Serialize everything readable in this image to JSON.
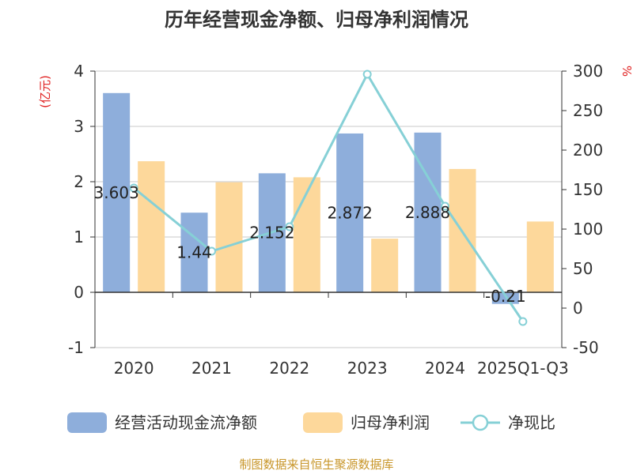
{
  "title": "历年经营现金净额、归母净利润情况",
  "source": "制图数据来自恒生聚源数据库",
  "chart_data": {
    "type": "bar",
    "categories": [
      "2020",
      "2021",
      "2022",
      "2023",
      "2024",
      "2025Q1-Q3"
    ],
    "y_left": {
      "unit": "(亿元)",
      "ticks": [
        4,
        3,
        2,
        1,
        0,
        -1
      ],
      "ylim": [
        -1,
        4
      ]
    },
    "y_right": {
      "unit": "%",
      "ticks": [
        300,
        250,
        200,
        150,
        100,
        50,
        0,
        -50
      ],
      "ylim": [
        -50,
        300
      ]
    },
    "series": [
      {
        "name": "经营活动现金流净额",
        "type": "bar",
        "axis": "left",
        "color": "#8eaedb",
        "values": [
          3.603,
          1.44,
          2.152,
          2.872,
          2.888,
          -0.21
        ],
        "labels": [
          "3.603",
          "1.44",
          "2.152",
          "2.872",
          "2.888",
          "-0.21"
        ]
      },
      {
        "name": "归母净利润",
        "type": "bar",
        "axis": "left",
        "color": "#fdd89b",
        "values": [
          2.37,
          1.99,
          2.08,
          0.97,
          2.23,
          1.28
        ]
      },
      {
        "name": "净现比",
        "type": "line",
        "axis": "right",
        "color": "#86d0d6",
        "values": [
          152,
          72,
          103,
          296,
          129,
          -17
        ]
      }
    ],
    "grid": true,
    "legend": "bottom"
  }
}
